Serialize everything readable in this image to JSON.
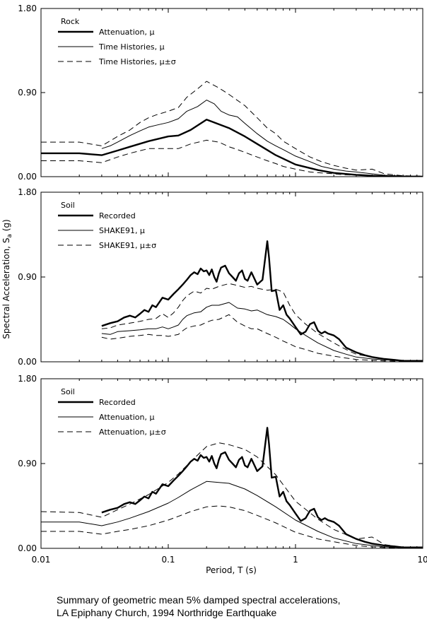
{
  "caption": {
    "line1": "Summary of geometric mean 5% damped spectral accelerations,",
    "line2": "LA Epiphany Church, 1994 Northridge Earthquake"
  },
  "chart_data": {
    "type": "line",
    "xlabel": "Period, T (s)",
    "ylabel_main": "Spectral Acceleration, S",
    "ylabel_sub": "a",
    "ylabel_unit": " (g)",
    "xscale": "log",
    "xlim": [
      0.01,
      10
    ],
    "ylim": [
      0,
      1.8
    ],
    "xticks": [
      0.01,
      0.1,
      1,
      10
    ],
    "xtick_labels": [
      "0.01",
      "0.1",
      "1",
      "10"
    ],
    "yticks": [
      0,
      0.9,
      1.8
    ],
    "ytick_labels": [
      "0.00",
      "0.90",
      "1.80"
    ],
    "panels": [
      {
        "legend_title": "Rock",
        "legend_placement": "top-left",
        "series": [
          {
            "name": "Attenuation, μ",
            "style": "thick",
            "x": [
              0.01,
              0.02,
              0.03,
              0.04,
              0.05,
              0.07,
              0.1,
              0.12,
              0.15,
              0.2,
              0.3,
              0.4,
              0.5,
              0.7,
              1.0,
              1.5,
              2.0,
              3.0,
              4.0,
              5.0,
              7.0,
              10.0
            ],
            "y": [
              0.25,
              0.25,
              0.23,
              0.28,
              0.32,
              0.38,
              0.43,
              0.44,
              0.5,
              0.61,
              0.52,
              0.43,
              0.35,
              0.23,
              0.13,
              0.07,
              0.04,
              0.02,
              0.01,
              0.005,
              0.002,
              0.001
            ]
          },
          {
            "name": "Time Histories, μ",
            "style": "thin",
            "x": [
              0.03,
              0.035,
              0.04,
              0.05,
              0.06,
              0.07,
              0.08,
              0.1,
              0.12,
              0.14,
              0.17,
              0.2,
              0.23,
              0.26,
              0.3,
              0.35,
              0.4,
              0.5,
              0.6,
              0.7,
              0.8,
              1.0,
              1.3,
              1.6,
              2.0,
              2.5,
              3.0,
              4.0,
              5.0,
              7.0,
              10.0
            ],
            "y": [
              0.3,
              0.33,
              0.37,
              0.44,
              0.49,
              0.53,
              0.55,
              0.58,
              0.62,
              0.7,
              0.75,
              0.82,
              0.78,
              0.7,
              0.66,
              0.64,
              0.57,
              0.46,
              0.38,
              0.33,
              0.29,
              0.22,
              0.16,
              0.11,
              0.08,
              0.06,
              0.05,
              0.03,
              0.015,
              0.005,
              0.002
            ]
          },
          {
            "name": "Time Histories, μ±σ",
            "style": "dashed",
            "x": [
              0.01,
              0.02,
              0.03,
              0.04,
              0.05,
              0.06,
              0.07,
              0.08,
              0.1,
              0.12,
              0.14,
              0.17,
              0.2,
              0.25,
              0.3,
              0.4,
              0.5,
              0.6,
              0.7,
              0.8,
              1.0,
              1.3,
              1.6,
              2.0,
              2.5,
              3.0,
              4.0,
              5.0,
              7.0,
              10.0
            ],
            "y": [
              0.37,
              0.37,
              0.33,
              0.43,
              0.5,
              0.58,
              0.63,
              0.66,
              0.7,
              0.74,
              0.85,
              0.94,
              1.02,
              0.95,
              0.88,
              0.76,
              0.63,
              0.52,
              0.46,
              0.38,
              0.3,
              0.21,
              0.16,
              0.12,
              0.09,
              0.07,
              0.08,
              0.03,
              0.01,
              0.005
            ]
          },
          {
            "name": "",
            "style": "dashed",
            "x": [
              0.01,
              0.02,
              0.03,
              0.04,
              0.05,
              0.07,
              0.1,
              0.12,
              0.15,
              0.2,
              0.25,
              0.3,
              0.35,
              0.4,
              0.5,
              0.6,
              0.7,
              0.8,
              1.0,
              1.3,
              1.6,
              2.0,
              2.5,
              3.0,
              4.0,
              5.0,
              7.0,
              10.0
            ],
            "y": [
              0.17,
              0.17,
              0.15,
              0.21,
              0.25,
              0.3,
              0.3,
              0.3,
              0.35,
              0.39,
              0.37,
              0.32,
              0.29,
              0.26,
              0.21,
              0.17,
              0.14,
              0.11,
              0.08,
              0.05,
              0.04,
              0.03,
              0.02,
              0.015,
              0.01,
              0.005,
              0.002,
              0.001
            ]
          }
        ]
      },
      {
        "legend_title": "Soil",
        "legend_placement": "top-left",
        "series": [
          {
            "name": "Recorded",
            "style": "thick",
            "x": [
              0.03,
              0.035,
              0.04,
              0.045,
              0.05,
              0.055,
              0.06,
              0.065,
              0.07,
              0.075,
              0.08,
              0.09,
              0.1,
              0.11,
              0.12,
              0.13,
              0.14,
              0.15,
              0.16,
              0.17,
              0.18,
              0.19,
              0.2,
              0.21,
              0.22,
              0.23,
              0.24,
              0.25,
              0.26,
              0.28,
              0.3,
              0.32,
              0.34,
              0.36,
              0.38,
              0.4,
              0.42,
              0.45,
              0.5,
              0.55,
              0.6,
              0.62,
              0.65,
              0.7,
              0.75,
              0.8,
              0.85,
              0.9,
              1.0,
              1.1,
              1.2,
              1.3,
              1.4,
              1.5,
              1.6,
              1.7,
              1.8,
              2.0,
              2.2,
              2.5,
              3.0,
              3.5,
              4.0,
              5.0,
              6.0,
              7.0,
              8.0,
              10.0
            ],
            "y": [
              0.38,
              0.41,
              0.43,
              0.47,
              0.49,
              0.47,
              0.51,
              0.55,
              0.53,
              0.6,
              0.58,
              0.68,
              0.66,
              0.72,
              0.77,
              0.82,
              0.87,
              0.92,
              0.95,
              0.93,
              0.99,
              0.96,
              0.97,
              0.92,
              0.98,
              0.9,
              0.85,
              0.94,
              1.0,
              1.02,
              0.94,
              0.9,
              0.86,
              0.94,
              0.97,
              0.88,
              0.86,
              0.95,
              0.82,
              0.87,
              1.28,
              1.1,
              0.75,
              0.76,
              0.55,
              0.6,
              0.5,
              0.46,
              0.37,
              0.29,
              0.32,
              0.4,
              0.42,
              0.33,
              0.3,
              0.32,
              0.3,
              0.28,
              0.24,
              0.15,
              0.1,
              0.07,
              0.05,
              0.03,
              0.02,
              0.01,
              0.01,
              0.01
            ]
          },
          {
            "name": "SHAKE91, μ",
            "style": "thin",
            "x": [
              0.03,
              0.035,
              0.04,
              0.05,
              0.06,
              0.07,
              0.08,
              0.09,
              0.1,
              0.11,
              0.12,
              0.13,
              0.14,
              0.16,
              0.18,
              0.2,
              0.22,
              0.25,
              0.3,
              0.35,
              0.4,
              0.45,
              0.5,
              0.6,
              0.7,
              0.8,
              0.9,
              1.0,
              1.2,
              1.5,
              2.0,
              2.5,
              3.0,
              4.0,
              5.0,
              7.0,
              10.0
            ],
            "y": [
              0.3,
              0.29,
              0.32,
              0.33,
              0.34,
              0.35,
              0.35,
              0.37,
              0.35,
              0.37,
              0.39,
              0.45,
              0.49,
              0.52,
              0.53,
              0.58,
              0.6,
              0.6,
              0.63,
              0.57,
              0.56,
              0.54,
              0.55,
              0.5,
              0.48,
              0.45,
              0.4,
              0.35,
              0.28,
              0.2,
              0.12,
              0.08,
              0.05,
              0.03,
              0.02,
              0.01,
              0.005
            ]
          },
          {
            "name": "SHAKE91, μ±σ",
            "style": "dashed",
            "x": [
              0.03,
              0.035,
              0.04,
              0.05,
              0.06,
              0.07,
              0.08,
              0.09,
              0.1,
              0.11,
              0.12,
              0.13,
              0.14,
              0.16,
              0.18,
              0.2,
              0.22,
              0.25,
              0.3,
              0.35,
              0.4,
              0.45,
              0.5,
              0.6,
              0.7,
              0.8,
              0.9,
              1.0,
              1.2,
              1.5,
              2.0,
              2.5,
              3.0,
              4.0,
              5.0,
              7.0,
              10.0
            ],
            "y": [
              0.35,
              0.36,
              0.39,
              0.41,
              0.43,
              0.45,
              0.46,
              0.51,
              0.47,
              0.52,
              0.58,
              0.65,
              0.7,
              0.75,
              0.73,
              0.78,
              0.77,
              0.8,
              0.83,
              0.81,
              0.79,
              0.8,
              0.78,
              0.76,
              0.77,
              0.74,
              0.6,
              0.5,
              0.4,
              0.3,
              0.2,
              0.13,
              0.08,
              0.05,
              0.03,
              0.015,
              0.008
            ]
          },
          {
            "name": "",
            "style": "dashed",
            "x": [
              0.03,
              0.035,
              0.04,
              0.05,
              0.06,
              0.07,
              0.08,
              0.09,
              0.1,
              0.11,
              0.12,
              0.13,
              0.14,
              0.16,
              0.18,
              0.2,
              0.22,
              0.25,
              0.3,
              0.35,
              0.4,
              0.45,
              0.5,
              0.6,
              0.7,
              0.8,
              0.9,
              1.0,
              1.2,
              1.5,
              2.0,
              2.5,
              3.0,
              4.0,
              5.0,
              7.0,
              10.0
            ],
            "y": [
              0.26,
              0.24,
              0.25,
              0.27,
              0.28,
              0.29,
              0.28,
              0.28,
              0.27,
              0.28,
              0.29,
              0.33,
              0.36,
              0.38,
              0.39,
              0.42,
              0.44,
              0.45,
              0.5,
              0.42,
              0.38,
              0.35,
              0.35,
              0.3,
              0.26,
              0.22,
              0.19,
              0.16,
              0.13,
              0.09,
              0.06,
              0.04,
              0.025,
              0.015,
              0.01,
              0.005,
              0.003
            ]
          }
        ]
      },
      {
        "legend_title": "Soil",
        "legend_placement": "top-left",
        "series": [
          {
            "name": "Recorded",
            "style": "thick",
            "x": [
              0.03,
              0.035,
              0.04,
              0.045,
              0.05,
              0.055,
              0.06,
              0.065,
              0.07,
              0.075,
              0.08,
              0.09,
              0.1,
              0.11,
              0.12,
              0.13,
              0.14,
              0.15,
              0.16,
              0.17,
              0.18,
              0.19,
              0.2,
              0.21,
              0.22,
              0.23,
              0.24,
              0.25,
              0.26,
              0.28,
              0.3,
              0.32,
              0.34,
              0.36,
              0.38,
              0.4,
              0.42,
              0.45,
              0.5,
              0.55,
              0.6,
              0.62,
              0.65,
              0.7,
              0.75,
              0.8,
              0.85,
              0.9,
              1.0,
              1.1,
              1.2,
              1.3,
              1.4,
              1.5,
              1.6,
              1.7,
              1.8,
              2.0,
              2.2,
              2.5,
              3.0,
              3.5,
              4.0,
              5.0,
              6.0,
              7.0,
              8.0,
              10.0
            ],
            "y": [
              0.38,
              0.41,
              0.43,
              0.47,
              0.49,
              0.47,
              0.51,
              0.55,
              0.53,
              0.6,
              0.58,
              0.68,
              0.66,
              0.72,
              0.77,
              0.82,
              0.87,
              0.92,
              0.95,
              0.93,
              0.99,
              0.96,
              0.97,
              0.92,
              0.98,
              0.9,
              0.85,
              0.94,
              1.0,
              1.02,
              0.94,
              0.9,
              0.86,
              0.94,
              0.97,
              0.88,
              0.86,
              0.95,
              0.82,
              0.87,
              1.28,
              1.1,
              0.75,
              0.76,
              0.55,
              0.6,
              0.5,
              0.46,
              0.37,
              0.29,
              0.32,
              0.4,
              0.42,
              0.33,
              0.3,
              0.32,
              0.3,
              0.28,
              0.24,
              0.15,
              0.1,
              0.07,
              0.05,
              0.03,
              0.02,
              0.01,
              0.01,
              0.01
            ]
          },
          {
            "name": "Attenuation, μ",
            "style": "thin",
            "x": [
              0.01,
              0.02,
              0.03,
              0.04,
              0.05,
              0.07,
              0.1,
              0.12,
              0.15,
              0.2,
              0.3,
              0.4,
              0.5,
              0.7,
              1.0,
              1.5,
              2.0,
              3.0,
              4.0,
              5.0,
              7.0,
              10.0
            ],
            "y": [
              0.28,
              0.28,
              0.24,
              0.28,
              0.32,
              0.39,
              0.48,
              0.54,
              0.62,
              0.71,
              0.69,
              0.63,
              0.56,
              0.44,
              0.3,
              0.18,
              0.11,
              0.05,
              0.03,
              0.015,
              0.005,
              0.002
            ]
          },
          {
            "name": "Attenuation, μ±σ",
            "style": "dashed",
            "x": [
              0.01,
              0.02,
              0.03,
              0.04,
              0.05,
              0.07,
              0.1,
              0.12,
              0.15,
              0.2,
              0.25,
              0.3,
              0.4,
              0.5,
              0.7,
              1.0,
              1.5,
              2.0,
              3.0,
              4.0,
              5.0,
              7.0,
              10.0
            ],
            "y": [
              0.39,
              0.38,
              0.33,
              0.41,
              0.47,
              0.57,
              0.7,
              0.79,
              0.92,
              1.08,
              1.12,
              1.1,
              1.05,
              0.97,
              0.78,
              0.5,
              0.31,
              0.2,
              0.1,
              0.12,
              0.04,
              0.01,
              0.005
            ]
          },
          {
            "name": "",
            "style": "dashed",
            "x": [
              0.01,
              0.02,
              0.03,
              0.04,
              0.05,
              0.07,
              0.1,
              0.12,
              0.15,
              0.2,
              0.25,
              0.3,
              0.4,
              0.5,
              0.7,
              1.0,
              1.5,
              2.0,
              3.0,
              4.0,
              5.0,
              7.0,
              10.0
            ],
            "y": [
              0.18,
              0.18,
              0.15,
              0.18,
              0.2,
              0.24,
              0.3,
              0.34,
              0.39,
              0.44,
              0.45,
              0.44,
              0.4,
              0.35,
              0.27,
              0.17,
              0.1,
              0.07,
              0.03,
              0.015,
              0.008,
              0.003,
              0.001
            ]
          }
        ]
      }
    ]
  }
}
